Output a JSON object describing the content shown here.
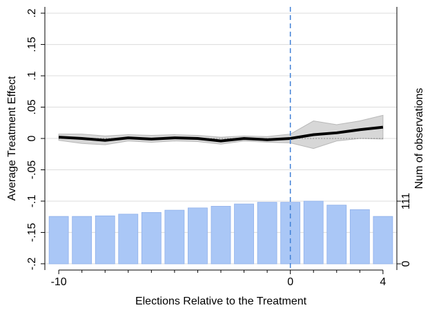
{
  "chart_data": {
    "type": "line",
    "x_label": "Elections Relative to the Treatment",
    "y_label": "Average Treatment Effect",
    "y2_label": "Num of observations",
    "x": [
      -10,
      -9,
      -8,
      -7,
      -6,
      -5,
      -4,
      -3,
      -2,
      -1,
      0,
      1,
      2,
      3,
      4
    ],
    "xlim": [
      -10.6,
      4.6
    ],
    "xticks": [
      -10,
      0,
      4
    ],
    "xminor_ticks": [
      -9,
      -8,
      -7,
      -6,
      -5,
      -4,
      -3,
      -2,
      -1,
      1,
      2,
      3
    ],
    "ylim": [
      -0.21,
      0.21
    ],
    "yticks": [
      {
        "value": -0.2,
        "label": "-.2"
      },
      {
        "value": -0.15,
        "label": "-.15"
      },
      {
        "value": -0.1,
        "label": "-.1"
      },
      {
        "value": -0.05,
        "label": "-.05"
      },
      0,
      {
        "value": 0.05,
        "label": ".05"
      },
      {
        "value": 0.1,
        "label": ".1"
      },
      {
        "value": 0.15,
        "label": ".15"
      },
      {
        "value": 0.2,
        "label": ".2"
      }
    ],
    "y2lim": [
      -11,
      455
    ],
    "y2ticks": [
      0,
      111
    ],
    "grid": true,
    "treatment_x": 0,
    "series": [
      {
        "name": "Average Treatment Effect",
        "color": "#000000",
        "values": [
          0.002,
          0.0,
          -0.003,
          0.001,
          -0.001,
          0.001,
          0.0,
          -0.004,
          0.0,
          -0.002,
          0.0,
          0.006,
          0.009,
          0.014,
          0.018
        ],
        "upper": [
          0.007,
          0.007,
          0.004,
          0.006,
          0.005,
          0.006,
          0.005,
          0.002,
          0.004,
          0.003,
          0.007,
          0.028,
          0.022,
          0.028,
          0.037
        ],
        "lower": [
          -0.003,
          -0.008,
          -0.01,
          -0.004,
          -0.006,
          -0.004,
          -0.005,
          -0.009,
          -0.004,
          -0.006,
          -0.007,
          -0.016,
          -0.004,
          0.0,
          -0.001
        ]
      },
      {
        "name": "Num of observations",
        "color": "#aac7f6",
        "axis": "y2",
        "values": [
          84,
          84,
          85,
          88,
          91,
          95,
          99,
          102,
          106,
          109,
          109,
          111,
          104,
          96,
          84
        ]
      }
    ]
  }
}
